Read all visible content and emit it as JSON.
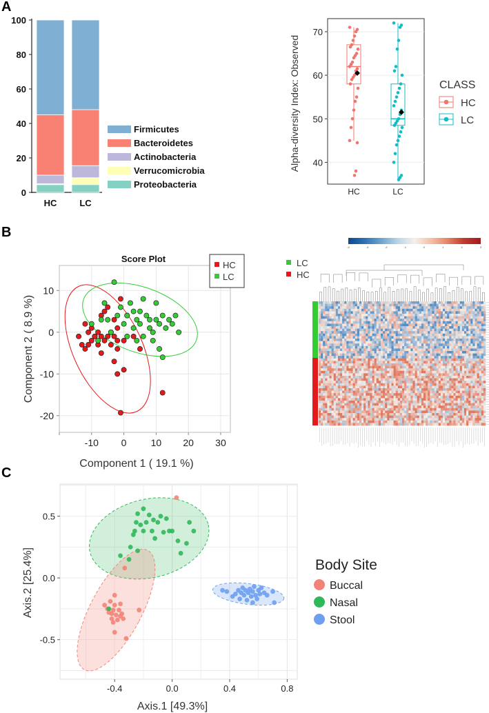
{
  "panels": {
    "a": "A",
    "b": "B",
    "c": "C"
  },
  "colors": {
    "firmicutes": "#7fafd3",
    "bacteroidetes": "#f98174",
    "actinobacteria": "#bdb7dc",
    "verrucomicrobia": "#feffb7",
    "proteobacteria": "#84d1c4",
    "hc_box": "#f0766d",
    "lc_box": "#14bcc5",
    "hc_pca": "#e31a1c",
    "lc_pca": "#33cc33",
    "buccal": "#f28477",
    "nasal": "#2fb85a",
    "stool": "#6d9ef0"
  },
  "chart_data": [
    {
      "type": "bar",
      "stacked": true,
      "categories": [
        "HC",
        "LC"
      ],
      "series": [
        {
          "name": "Proteobacteria",
          "color_key": "proteobacteria",
          "values": [
            4.5,
            4.5
          ]
        },
        {
          "name": "Verrucomicrobia",
          "color_key": "verrucomicrobia",
          "values": [
            0.5,
            4.0
          ]
        },
        {
          "name": "Actinobacteria",
          "color_key": "actinobacteria",
          "values": [
            5.0,
            7.0
          ]
        },
        {
          "name": "Bacteroidetes",
          "color_key": "bacteroidetes",
          "values": [
            35.0,
            32.5
          ]
        },
        {
          "name": "Firmicutes",
          "color_key": "firmicutes",
          "values": [
            55.0,
            52.0
          ]
        }
      ],
      "legend_order": [
        "Firmicutes",
        "Bacteroidetes",
        "Actinobacteria",
        "Verrucomicrobia",
        "Proteobacteria"
      ],
      "yticks": [
        0,
        20,
        40,
        60,
        80,
        100
      ],
      "ylim": [
        0,
        100
      ]
    },
    {
      "type": "box",
      "ylabel": "Alpha-diversity Index: Observed",
      "categories": [
        "HC",
        "LC"
      ],
      "yticks": [
        40,
        50,
        60,
        70
      ],
      "ylim": [
        35,
        73
      ],
      "legend_title": "CLASS",
      "groups": [
        {
          "name": "HC",
          "color_key": "hc_box",
          "min": 45,
          "q1": 58,
          "median": 62,
          "q3": 67,
          "max": 71,
          "mean": 60.5,
          "points": [
            71,
            70.5,
            70,
            69,
            68,
            67,
            66.5,
            66,
            65,
            64.5,
            64,
            63,
            62.5,
            62,
            61.5,
            61,
            60,
            59.5,
            59,
            58,
            57,
            55,
            54,
            52,
            50,
            48,
            45,
            44.5,
            38,
            37
          ]
        },
        {
          "name": "LC",
          "color_key": "lc_box",
          "min": 36,
          "q1": 48.5,
          "median": 50,
          "q3": 58,
          "max": 72,
          "mean": 51.5,
          "points": [
            72,
            71.5,
            71,
            68,
            66,
            62,
            61,
            60,
            58,
            57,
            56,
            55,
            54,
            53,
            52,
            51,
            50,
            49.5,
            49,
            48.5,
            48,
            47,
            46,
            45,
            44,
            42,
            40,
            37,
            36.5,
            36
          ]
        }
      ]
    },
    {
      "type": "scatter",
      "title": "Score Plot",
      "xlabel": "Component 1 ( 19.1 %)",
      "ylabel": "Component 2 ( 8.9 %)",
      "xticks": [
        -10,
        0,
        10,
        20,
        30
      ],
      "yticks": [
        10,
        0,
        -10,
        -20
      ],
      "xlim": [
        -20,
        33
      ],
      "ylim": [
        -24,
        16
      ],
      "series": [
        {
          "name": "HC",
          "color_key": "hc_pca",
          "points": [
            [
              -14,
              -1
            ],
            [
              -13,
              -3
            ],
            [
              -12,
              -4
            ],
            [
              -12,
              2
            ],
            [
              -11,
              0
            ],
            [
              -11,
              -3
            ],
            [
              -10,
              1
            ],
            [
              -10,
              -2
            ],
            [
              -9,
              -1
            ],
            [
              -9,
              -1
            ],
            [
              -8,
              0
            ],
            [
              -8,
              -3
            ],
            [
              -7,
              -5
            ],
            [
              -7,
              4
            ],
            [
              -7,
              -1
            ],
            [
              -6,
              5
            ],
            [
              -6,
              -2
            ],
            [
              -5,
              -1
            ],
            [
              -5,
              6
            ],
            [
              -4,
              0
            ],
            [
              -4,
              -3
            ],
            [
              -3,
              3
            ],
            [
              -3,
              -7
            ],
            [
              -3,
              -1
            ],
            [
              -2,
              1
            ],
            [
              -2,
              -2
            ],
            [
              -2,
              -4
            ],
            [
              -2,
              -10
            ],
            [
              0,
              -9
            ],
            [
              0,
              -2
            ],
            [
              -1,
              8
            ],
            [
              1,
              4
            ],
            [
              3,
              -1
            ],
            [
              5,
              -4
            ],
            [
              12,
              -14.5
            ],
            [
              -1,
              -19.3
            ]
          ]
        },
        {
          "name": "LC",
          "color_key": "lc_pca",
          "points": [
            [
              -10,
              2
            ],
            [
              -8,
              -2
            ],
            [
              -7,
              3
            ],
            [
              -6,
              7
            ],
            [
              -5,
              3
            ],
            [
              -4,
              0
            ],
            [
              -3,
              12
            ],
            [
              -2,
              4
            ],
            [
              -1,
              6
            ],
            [
              0,
              2
            ],
            [
              1,
              -1
            ],
            [
              1,
              4
            ],
            [
              2,
              7
            ],
            [
              3,
              1
            ],
            [
              3,
              5
            ],
            [
              4,
              3
            ],
            [
              4,
              -2
            ],
            [
              5,
              2
            ],
            [
              5,
              5
            ],
            [
              6,
              -1
            ],
            [
              6,
              8
            ],
            [
              7,
              4
            ],
            [
              8,
              1
            ],
            [
              8,
              3
            ],
            [
              9,
              0
            ],
            [
              9,
              -2
            ],
            [
              10,
              3
            ],
            [
              10,
              7
            ],
            [
              11,
              2
            ],
            [
              11,
              -4
            ],
            [
              12,
              4
            ],
            [
              12,
              -6
            ],
            [
              13,
              1
            ],
            [
              14,
              3
            ],
            [
              15,
              2
            ],
            [
              16,
              4
            ],
            [
              17,
              0
            ]
          ]
        }
      ],
      "legend": [
        "HC",
        "LC"
      ]
    },
    {
      "type": "heatmap",
      "legend": [
        "LC",
        "HC"
      ],
      "colorbar_ticks": [
        "-4",
        "-3",
        "-2",
        "-1",
        "0",
        "1",
        "2",
        "3"
      ],
      "colorbar_range": [
        -4,
        3
      ]
    },
    {
      "type": "scatter",
      "xlabel": "Axis.1   [49.3%]",
      "ylabel": "Axis.2   [25.4%]",
      "xticks": [
        -0.4,
        0.0,
        0.4,
        0.8
      ],
      "yticks": [
        0.5,
        0.0,
        -0.5
      ],
      "xlim": [
        -0.78,
        0.87
      ],
      "ylim": [
        -0.82,
        0.76
      ],
      "legend_title": "Body Site",
      "series": [
        {
          "name": "Buccal",
          "color_key": "buccal",
          "points": [
            [
              -0.47,
              -0.22
            ],
            [
              -0.45,
              -0.25
            ],
            [
              -0.44,
              -0.28
            ],
            [
              -0.43,
              -0.19
            ],
            [
              -0.42,
              -0.29
            ],
            [
              -0.42,
              -0.33
            ],
            [
              -0.41,
              -0.26
            ],
            [
              -0.41,
              -0.36
            ],
            [
              -0.4,
              -0.22
            ],
            [
              -0.4,
              -0.44
            ],
            [
              -0.39,
              -0.3
            ],
            [
              -0.38,
              -0.34
            ],
            [
              -0.37,
              -0.26
            ],
            [
              -0.36,
              -0.31
            ],
            [
              -0.36,
              -0.21
            ],
            [
              -0.35,
              -0.29
            ],
            [
              -0.34,
              -0.33
            ],
            [
              -0.32,
              -0.49
            ],
            [
              -0.23,
              -0.26
            ],
            [
              -0.4,
              -0.14
            ],
            [
              0.03,
              0.65
            ],
            [
              -0.33,
              0.08
            ]
          ]
        },
        {
          "name": "Nasal",
          "color_key": "nasal",
          "points": [
            [
              -0.44,
              -0.25
            ],
            [
              -0.29,
              0.25
            ],
            [
              -0.27,
              0.35
            ],
            [
              -0.26,
              0.38
            ],
            [
              -0.25,
              0.45
            ],
            [
              -0.24,
              0.52
            ],
            [
              -0.22,
              0.43
            ],
            [
              -0.2,
              0.38
            ],
            [
              -0.2,
              0.56
            ],
            [
              -0.18,
              0.45
            ],
            [
              -0.16,
              0.51
            ],
            [
              -0.14,
              0.38
            ],
            [
              -0.13,
              0.47
            ],
            [
              -0.12,
              0.32
            ],
            [
              -0.1,
              0.45
            ],
            [
              -0.08,
              0.5
            ],
            [
              -0.06,
              0.37
            ],
            [
              -0.04,
              0.48
            ],
            [
              -0.02,
              0.38
            ],
            [
              0.0,
              0.38
            ],
            [
              0.04,
              0.3
            ],
            [
              0.06,
              0.2
            ],
            [
              0.1,
              0.28
            ],
            [
              0.12,
              0.45
            ],
            [
              0.15,
              0.38
            ],
            [
              -0.3,
              0.15
            ],
            [
              -0.24,
              0.22
            ],
            [
              -0.36,
              0.18
            ]
          ]
        },
        {
          "name": "Stool",
          "color_key": "stool",
          "points": [
            [
              0.35,
              -0.1
            ],
            [
              0.38,
              -0.11
            ],
            [
              0.42,
              -0.15
            ],
            [
              0.44,
              -0.13
            ],
            [
              0.46,
              -0.1
            ],
            [
              0.47,
              -0.17
            ],
            [
              0.48,
              -0.12
            ],
            [
              0.49,
              -0.08
            ],
            [
              0.5,
              -0.14
            ],
            [
              0.51,
              -0.1
            ],
            [
              0.52,
              -0.18
            ],
            [
              0.53,
              -0.12
            ],
            [
              0.54,
              -0.09
            ],
            [
              0.55,
              -0.15
            ],
            [
              0.56,
              -0.11
            ],
            [
              0.57,
              -0.07
            ],
            [
              0.58,
              -0.14
            ],
            [
              0.59,
              -0.17
            ],
            [
              0.6,
              -0.1
            ],
            [
              0.61,
              -0.13
            ],
            [
              0.62,
              -0.08
            ],
            [
              0.64,
              -0.12
            ],
            [
              0.66,
              -0.14
            ],
            [
              0.71,
              -0.2
            ],
            [
              0.7,
              -0.11
            ],
            [
              0.56,
              -0.2
            ]
          ]
        }
      ]
    }
  ]
}
